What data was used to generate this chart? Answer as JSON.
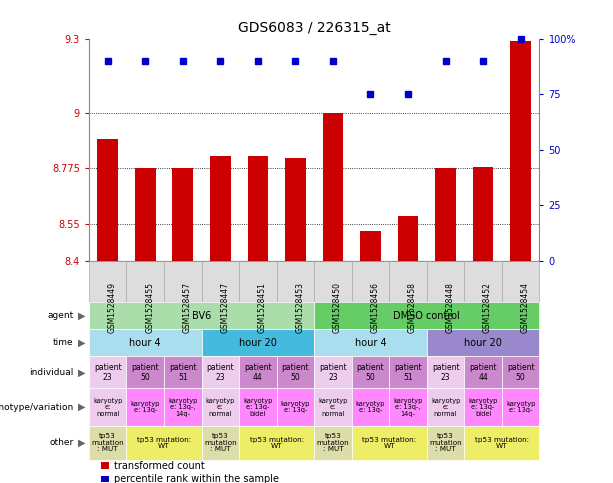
{
  "title": "GDS6083 / 226315_at",
  "samples": [
    "GSM1528449",
    "GSM1528455",
    "GSM1528457",
    "GSM1528447",
    "GSM1528451",
    "GSM1528453",
    "GSM1528450",
    "GSM1528456",
    "GSM1528458",
    "GSM1528448",
    "GSM1528452",
    "GSM1528454"
  ],
  "bar_values": [
    8.895,
    8.775,
    8.775,
    8.825,
    8.825,
    8.815,
    9.0,
    8.52,
    8.58,
    8.775,
    8.78,
    9.29
  ],
  "dot_values": [
    90,
    90,
    90,
    90,
    90,
    90,
    90,
    75,
    75,
    90,
    90,
    100
  ],
  "ylim": [
    8.4,
    9.3
  ],
  "yticks": [
    8.4,
    8.55,
    8.775,
    9.0,
    9.3
  ],
  "ytick_labels": [
    "8.4",
    "8.55",
    "8.775",
    "9",
    "9.3"
  ],
  "y2lim": [
    0,
    133.33
  ],
  "y2tick_labels": [
    "0",
    "25",
    "50",
    "75",
    "100%"
  ],
  "bar_color": "#cc0000",
  "dot_color": "#0000cc",
  "agent_groups": [
    {
      "text": "BV6",
      "span": 6,
      "color": "#aaddaa"
    },
    {
      "text": "DMSO control",
      "span": 6,
      "color": "#66cc66"
    }
  ],
  "time_groups": [
    {
      "text": "hour 4",
      "span": 3,
      "color": "#aaddee"
    },
    {
      "text": "hour 20",
      "span": 3,
      "color": "#44bbdd"
    },
    {
      "text": "hour 4",
      "span": 3,
      "color": "#aaddee"
    },
    {
      "text": "hour 20",
      "span": 3,
      "color": "#9988cc"
    }
  ],
  "individual_cells": [
    {
      "text": "patient\n23",
      "color": "#eeccee"
    },
    {
      "text": "patient\n50",
      "color": "#cc88cc"
    },
    {
      "text": "patient\n51",
      "color": "#cc88cc"
    },
    {
      "text": "patient\n23",
      "color": "#eeccee"
    },
    {
      "text": "patient\n44",
      "color": "#cc88cc"
    },
    {
      "text": "patient\n50",
      "color": "#cc88cc"
    },
    {
      "text": "patient\n23",
      "color": "#eeccee"
    },
    {
      "text": "patient\n50",
      "color": "#cc88cc"
    },
    {
      "text": "patient\n51",
      "color": "#cc88cc"
    },
    {
      "text": "patient\n23",
      "color": "#eeccee"
    },
    {
      "text": "patient\n44",
      "color": "#cc88cc"
    },
    {
      "text": "patient\n50",
      "color": "#cc88cc"
    }
  ],
  "genotype_cells": [
    {
      "text": "karyotyp\ne:\nnormal",
      "color": "#eeccee"
    },
    {
      "text": "karyotyp\ne: 13q-",
      "color": "#ff88ff"
    },
    {
      "text": "karyotyp\ne: 13q-,\n14q-",
      "color": "#ff88ff"
    },
    {
      "text": "karyotyp\ne:\nnormal",
      "color": "#eeccee"
    },
    {
      "text": "karyotyp\ne: 13q-\nbidel",
      "color": "#ff88ff"
    },
    {
      "text": "karyotyp\ne: 13q-",
      "color": "#ff88ff"
    },
    {
      "text": "karyotyp\ne:\nnormal",
      "color": "#eeccee"
    },
    {
      "text": "karyotyp\ne: 13q-",
      "color": "#ff88ff"
    },
    {
      "text": "karyotyp\ne: 13q-,\n14q-",
      "color": "#ff88ff"
    },
    {
      "text": "karyotyp\ne:\nnormal",
      "color": "#eeccee"
    },
    {
      "text": "karyotyp\ne: 13q-\nbidel",
      "color": "#ff88ff"
    },
    {
      "text": "karyotyp\ne: 13q-",
      "color": "#ff88ff"
    }
  ],
  "other_groups": [
    {
      "text": "tp53\nmutation\n: MUT",
      "span": 1,
      "color": "#ddddaa"
    },
    {
      "text": "tp53 mutation:\nWT",
      "span": 2,
      "color": "#eeee66"
    },
    {
      "text": "tp53\nmutation\n: MUT",
      "span": 1,
      "color": "#ddddaa"
    },
    {
      "text": "tp53 mutation:\nWT",
      "span": 2,
      "color": "#eeee66"
    },
    {
      "text": "tp53\nmutation\n: MUT",
      "span": 1,
      "color": "#ddddaa"
    },
    {
      "text": "tp53 mutation:\nWT",
      "span": 2,
      "color": "#eeee66"
    },
    {
      "text": "tp53\nmutation\n: MUT",
      "span": 1,
      "color": "#ddddaa"
    },
    {
      "text": "tp53 mutation:\nWT",
      "span": 2,
      "color": "#eeee66"
    }
  ],
  "row_labels": [
    "agent",
    "time",
    "individual",
    "genotype/variation",
    "other"
  ],
  "legend": [
    {
      "label": "transformed count",
      "color": "#cc0000"
    },
    {
      "label": "percentile rank within the sample",
      "color": "#0000cc"
    }
  ],
  "sample_box_color": "#dddddd",
  "sample_box_border": "#aaaaaa"
}
